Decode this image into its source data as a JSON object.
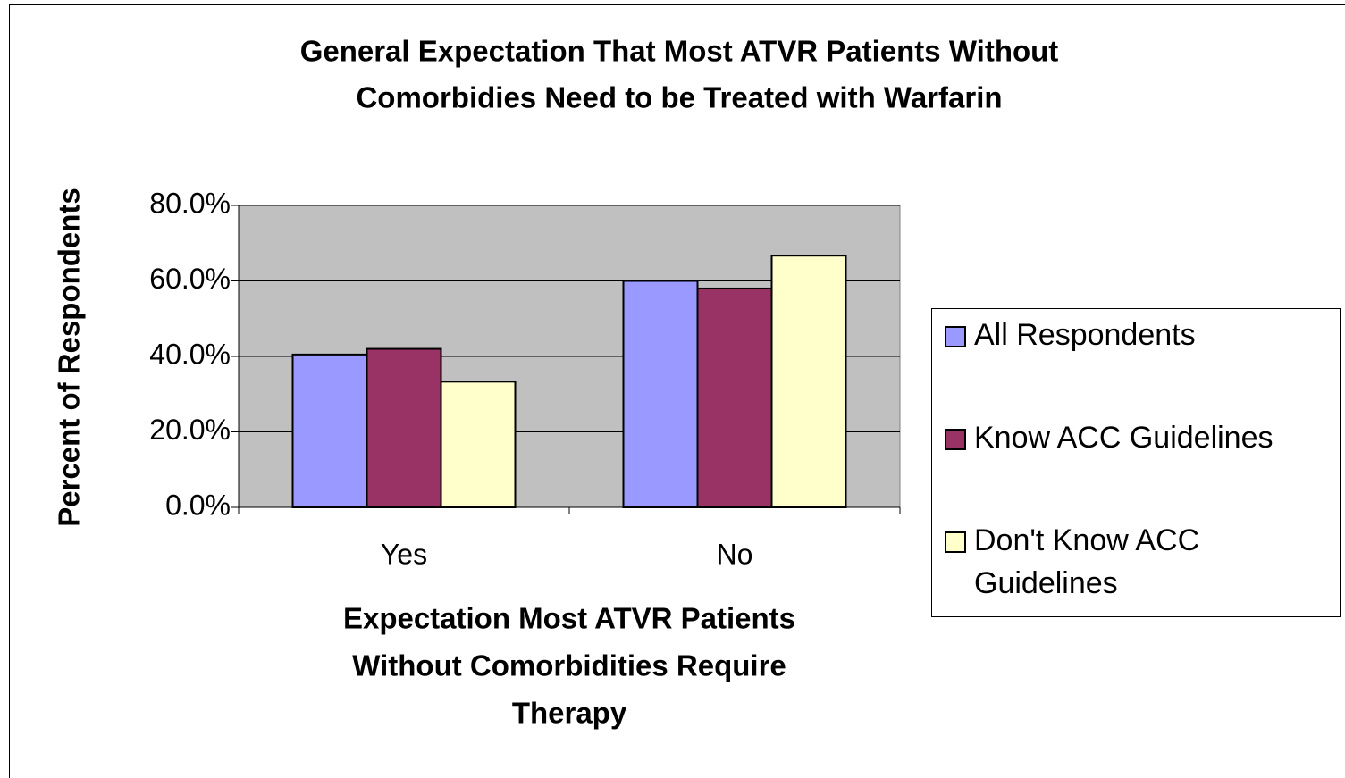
{
  "chart_data": {
    "type": "bar",
    "title": [
      "General Expectation That Most ATVR Patients Without",
      "Comorbidies Need to be Treated with Warfarin"
    ],
    "x_label": [
      "Expectation Most ATVR Patients",
      "Without Comorbidities Require",
      "Therapy"
    ],
    "y_label": "Percent of Respondents",
    "categories": [
      "Yes",
      "No"
    ],
    "series": [
      {
        "name": "All Respondents",
        "color": "#9999ff",
        "values": [
          40.5,
          60
        ]
      },
      {
        "name": "Know ACC Guidelines",
        "color": "#993366",
        "values": [
          42,
          58
        ]
      },
      {
        "name": "Don't Know ACC Guidelines",
        "color": "#ffffcc",
        "values": [
          33.3,
          66.7
        ]
      }
    ],
    "ylim": [
      0,
      80
    ],
    "yticks": [
      {
        "value": 0,
        "label": "0.0%"
      },
      {
        "value": 20,
        "label": "20.0%"
      },
      {
        "value": 40,
        "label": "40.0%"
      },
      {
        "value": 60,
        "label": "60.0%"
      },
      {
        "value": 80,
        "label": "80.0%"
      }
    ],
    "grid": true,
    "plot_background": "#c0c0c0",
    "legend": "right"
  }
}
